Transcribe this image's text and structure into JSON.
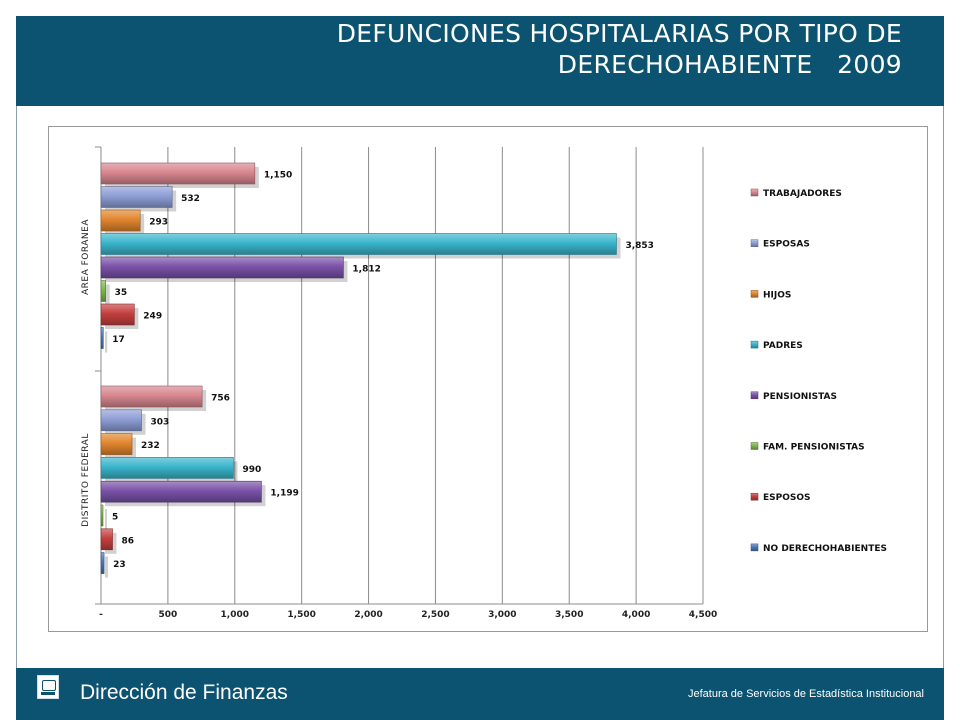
{
  "header": {
    "title_line1": "DEFUNCIONES HOSPITALARIAS POR TIPO DE",
    "title_line2": "DERECHOHABIENTE   2009"
  },
  "footer": {
    "title": "Dirección de Finanzas",
    "subtitle": "Jefatura de Servicios de Estadística Institucional",
    "logo_icon": "issste-logo-icon"
  },
  "chart_data": {
    "type": "bar",
    "orientation": "horizontal",
    "groups": [
      "AREA FORANEA",
      "DISTRITO FEDERAL"
    ],
    "series": [
      {
        "name": "TRABAJADORES",
        "color": "#d9868f",
        "values": [
          1150,
          756
        ],
        "labels": [
          "1,150",
          "756"
        ]
      },
      {
        "name": "ESPOSAS",
        "color": "#8e9ed6",
        "values": [
          532,
          303
        ],
        "labels": [
          "532",
          "303"
        ]
      },
      {
        "name": "HIJOS",
        "color": "#e2862e",
        "values": [
          293,
          232
        ],
        "labels": [
          "293",
          "232"
        ]
      },
      {
        "name": "PADRES",
        "color": "#3ab5cc",
        "values": [
          3853,
          990
        ],
        "labels": [
          "3,853",
          "990"
        ]
      },
      {
        "name": "PENSIONISTAS",
        "color": "#7a52a8",
        "values": [
          1812,
          1199
        ],
        "labels": [
          "1,812",
          "1,199"
        ]
      },
      {
        "name": "FAM. PENSIONISTAS",
        "color": "#7cb84a",
        "values": [
          35,
          5
        ],
        "labels": [
          "35",
          "5"
        ]
      },
      {
        "name": "ESPOSOS",
        "color": "#c53f3f",
        "values": [
          249,
          86
        ],
        "labels": [
          "249",
          "86"
        ]
      },
      {
        "name": "NO DERECHOHABIENTES",
        "color": "#4a78b8",
        "values": [
          17,
          23
        ],
        "labels": [
          "17",
          "23"
        ]
      }
    ],
    "xlim": [
      0,
      4500
    ],
    "x_ticks": [
      0,
      500,
      1000,
      1500,
      2000,
      2500,
      3000,
      3500,
      4000,
      4500
    ],
    "x_tick_labels": [
      "-",
      "500",
      "1,000",
      "1,500",
      "2,000",
      "2,500",
      "3,000",
      "3,500",
      "4,000",
      "4,500"
    ],
    "grid": "vertical",
    "legend_position": "right"
  }
}
